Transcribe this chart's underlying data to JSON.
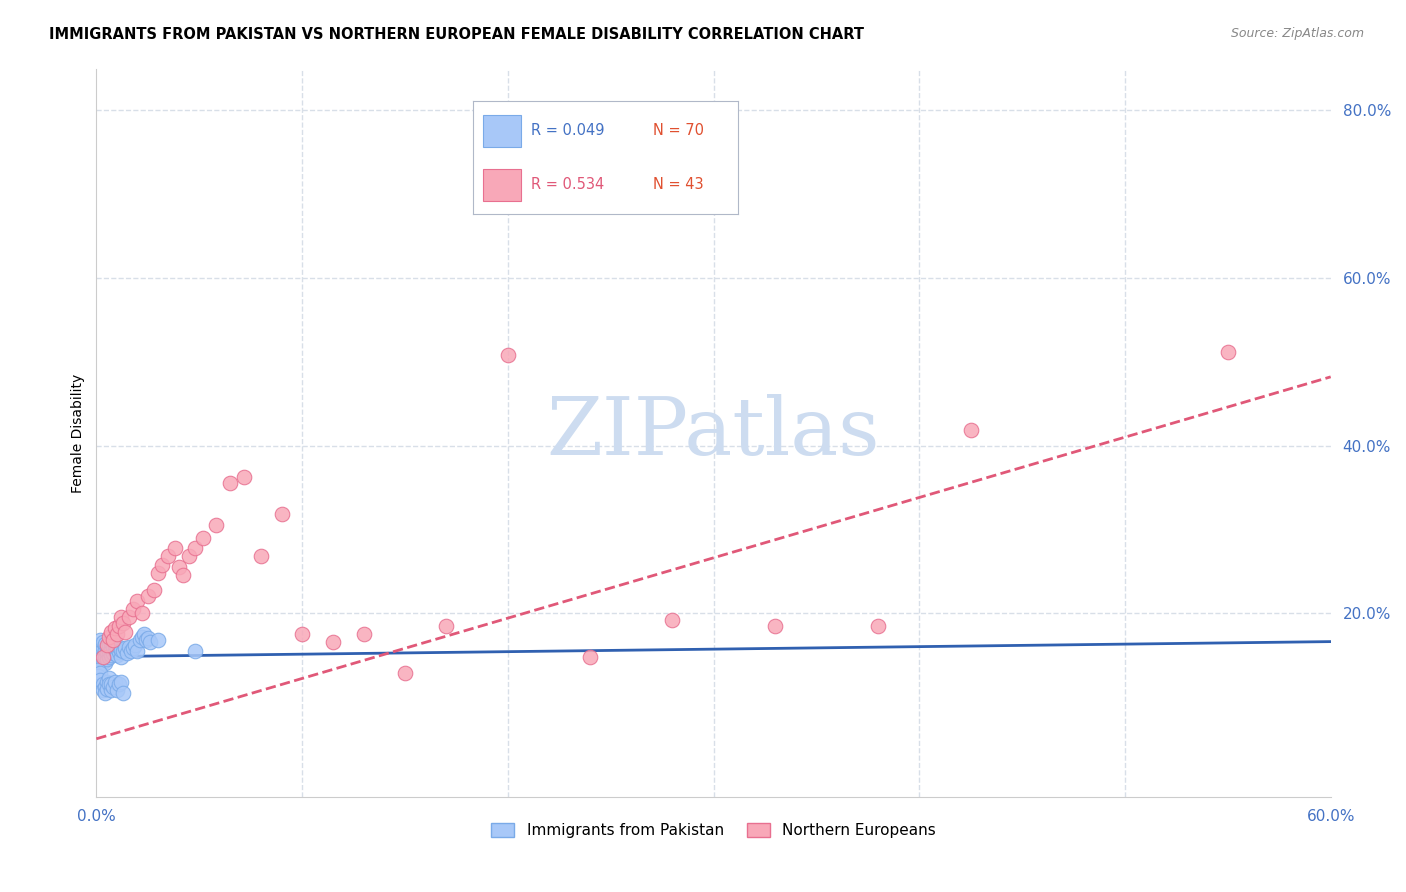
{
  "title": "IMMIGRANTS FROM PAKISTAN VS NORTHERN EUROPEAN FEMALE DISABILITY CORRELATION CHART",
  "source": "Source: ZipAtlas.com",
  "ylabel": "Female Disability",
  "xlim": [
    0.0,
    0.6
  ],
  "ylim": [
    -0.02,
    0.85
  ],
  "yticks_right": [
    0.2,
    0.4,
    0.6,
    0.8
  ],
  "ytick_right_labels": [
    "20.0%",
    "40.0%",
    "60.0%",
    "80.0%"
  ],
  "watermark": "ZIPatlas",
  "watermark_color": "#cddcf0",
  "pakistan_color": "#a8c8f8",
  "pakistan_edge": "#7aaae8",
  "northern_color": "#f8a8b8",
  "northern_edge": "#e87090",
  "line_pakistan_color": "#3060b0",
  "line_northern_color": "#e05878",
  "grid_color": "#d8dfe8",
  "background_color": "#ffffff",
  "tick_color": "#4472c4",
  "pakistan_x": [
    0.001,
    0.001,
    0.001,
    0.002,
    0.002,
    0.002,
    0.002,
    0.003,
    0.003,
    0.003,
    0.003,
    0.004,
    0.004,
    0.004,
    0.004,
    0.005,
    0.005,
    0.005,
    0.006,
    0.006,
    0.006,
    0.007,
    0.007,
    0.007,
    0.008,
    0.008,
    0.009,
    0.009,
    0.01,
    0.01,
    0.011,
    0.011,
    0.012,
    0.012,
    0.013,
    0.014,
    0.015,
    0.016,
    0.017,
    0.018,
    0.019,
    0.02,
    0.021,
    0.022,
    0.023,
    0.024,
    0.025,
    0.026,
    0.001,
    0.001,
    0.002,
    0.002,
    0.003,
    0.003,
    0.004,
    0.004,
    0.005,
    0.005,
    0.006,
    0.006,
    0.007,
    0.007,
    0.008,
    0.009,
    0.01,
    0.011,
    0.012,
    0.013,
    0.03,
    0.048
  ],
  "pakistan_y": [
    0.148,
    0.155,
    0.162,
    0.145,
    0.152,
    0.16,
    0.168,
    0.142,
    0.15,
    0.158,
    0.165,
    0.14,
    0.148,
    0.156,
    0.163,
    0.145,
    0.153,
    0.16,
    0.148,
    0.155,
    0.162,
    0.15,
    0.157,
    0.164,
    0.152,
    0.16,
    0.155,
    0.162,
    0.15,
    0.158,
    0.153,
    0.16,
    0.148,
    0.156,
    0.155,
    0.158,
    0.152,
    0.16,
    0.155,
    0.158,
    0.162,
    0.155,
    0.168,
    0.172,
    0.175,
    0.168,
    0.17,
    0.165,
    0.132,
    0.125,
    0.128,
    0.12,
    0.115,
    0.108,
    0.112,
    0.105,
    0.118,
    0.11,
    0.122,
    0.115,
    0.108,
    0.115,
    0.112,
    0.118,
    0.108,
    0.115,
    0.118,
    0.105,
    0.168,
    0.155
  ],
  "northern_x": [
    0.003,
    0.005,
    0.006,
    0.007,
    0.008,
    0.009,
    0.01,
    0.011,
    0.012,
    0.013,
    0.014,
    0.016,
    0.018,
    0.02,
    0.022,
    0.025,
    0.028,
    0.03,
    0.032,
    0.035,
    0.038,
    0.04,
    0.042,
    0.045,
    0.048,
    0.052,
    0.058,
    0.065,
    0.072,
    0.08,
    0.09,
    0.1,
    0.115,
    0.13,
    0.15,
    0.17,
    0.2,
    0.24,
    0.28,
    0.33,
    0.38,
    0.425,
    0.55
  ],
  "northern_y": [
    0.148,
    0.162,
    0.172,
    0.178,
    0.168,
    0.182,
    0.175,
    0.185,
    0.195,
    0.188,
    0.178,
    0.195,
    0.205,
    0.215,
    0.2,
    0.22,
    0.228,
    0.248,
    0.258,
    0.268,
    0.278,
    0.255,
    0.245,
    0.268,
    0.278,
    0.29,
    0.305,
    0.355,
    0.362,
    0.268,
    0.318,
    0.175,
    0.165,
    0.175,
    0.128,
    0.185,
    0.508,
    0.148,
    0.192,
    0.185,
    0.185,
    0.418,
    0.512
  ]
}
